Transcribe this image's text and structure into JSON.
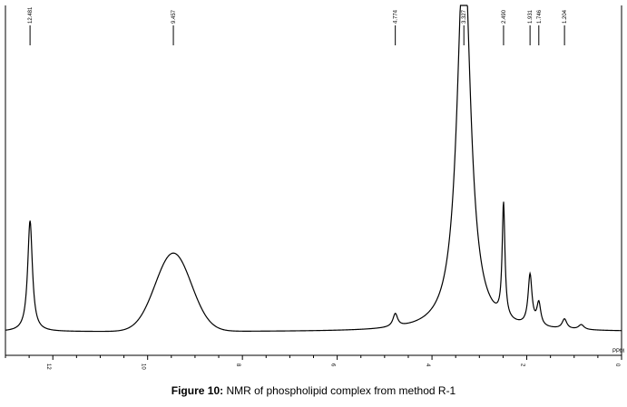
{
  "chart_data": {
    "type": "line",
    "xlabel": "PPM",
    "x_reversed": true,
    "xlim": [
      0,
      13
    ],
    "x_ticks": [
      12,
      10,
      8,
      6,
      4,
      2,
      0
    ],
    "x_tick_labels": [
      "12",
      "10",
      "8",
      "6",
      "4",
      "2",
      "0"
    ],
    "peaks": [
      {
        "ppm": 12.481,
        "label": "12.481",
        "height": 0.34,
        "width": 0.06,
        "shape": "lorentz"
      },
      {
        "ppm": 9.457,
        "label": "9.457",
        "height": 0.24,
        "width": 0.38,
        "shape": "gauss"
      },
      {
        "ppm": 4.774,
        "label": "4.774",
        "height": 0.04,
        "width": 0.06,
        "shape": "lorentz"
      },
      {
        "ppm": 3.327,
        "label": "3.327",
        "height": 1.2,
        "width": 0.17,
        "shape": "lorentz"
      },
      {
        "ppm": 2.49,
        "label": "2.490",
        "height": 0.35,
        "width": 0.035,
        "shape": "lorentz"
      },
      {
        "ppm": 1.931,
        "label": "1.931",
        "height": 0.155,
        "width": 0.05,
        "shape": "lorentz"
      },
      {
        "ppm": 1.746,
        "label": "1.746",
        "height": 0.07,
        "width": 0.05,
        "shape": "lorentz"
      },
      {
        "ppm": 1.204,
        "label": "1.204",
        "height": 0.03,
        "width": 0.06,
        "shape": "lorentz"
      },
      {
        "ppm": 0.85,
        "label": "",
        "height": 0.015,
        "width": 0.07,
        "shape": "lorentz"
      }
    ],
    "y_visible_max": 1.0
  },
  "caption": {
    "label": "Figure 10:",
    "text": " NMR of phospholipid complex from method R-1"
  },
  "colors": {
    "line": "#000000",
    "background": "#ffffff"
  }
}
